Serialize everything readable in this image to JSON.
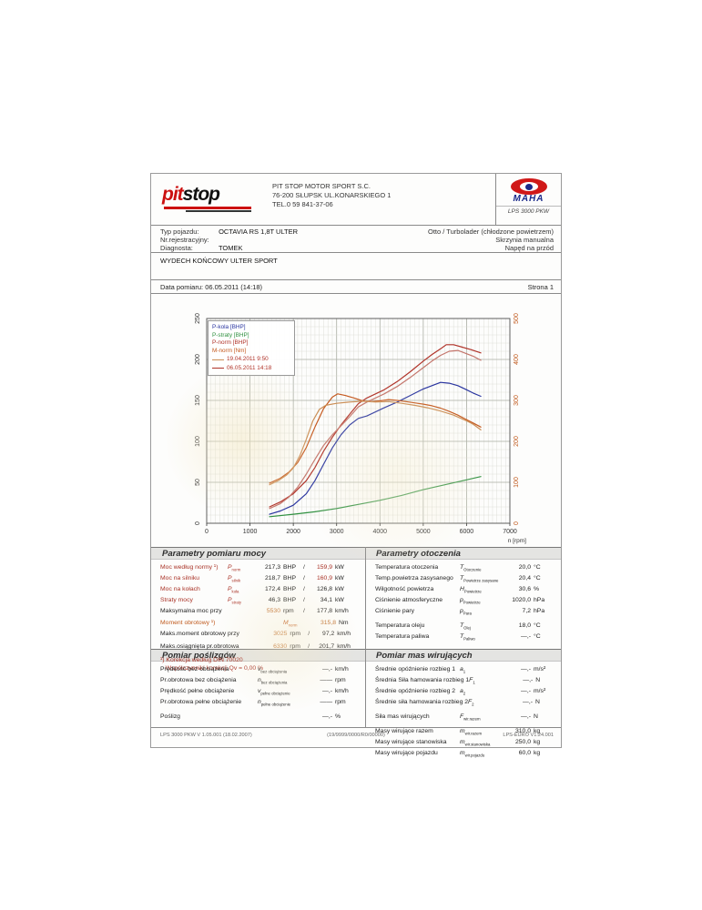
{
  "header": {
    "logo": {
      "part1": "pit",
      "part2": "stop"
    },
    "company": [
      "PIT STOP MOTOR SPORT S.C.",
      "76-200 SŁUPSK UL.KONARSKIEGO 1",
      "TEL.0 59 841-37-06"
    ],
    "maha": {
      "brand": "MAHA",
      "device": "LPS 3000 PKW"
    }
  },
  "vehicle": {
    "left": [
      {
        "label": "Typ pojazdu:",
        "value": "OCTAVIA RS 1,8T ULTER"
      },
      {
        "label": "Nr.rejestracyjny:",
        "value": ""
      },
      {
        "label": "Diagnosta:",
        "value": "TOMEK"
      }
    ],
    "right": [
      "Otto / Turbolader (chłodzone powietrzem)",
      "Skrzynia manualna",
      "Napęd na przód"
    ],
    "note": "WYDECH KOŃCOWY ULTER SPORT"
  },
  "meta": {
    "date_line": "Data pomiaru: 06.05.2011 (14:18)",
    "page": "Strona 1"
  },
  "chart_data": {
    "type": "line",
    "xlabel": "n [rpm]",
    "x_range": [
      0,
      7000
    ],
    "x_ticks": [
      0,
      1000,
      2000,
      3000,
      4000,
      5000,
      6000,
      7000
    ],
    "left_axis": {
      "label": "P [BHP]",
      "range": [
        0,
        250
      ],
      "tick_step": 50,
      "color": "#333333"
    },
    "right_axis": {
      "label": "M [Nm]",
      "range": [
        0,
        500
      ],
      "tick_step": 100,
      "color": "#c05a1e"
    },
    "grid": {
      "minor_x_step": 100,
      "minor_y_step": 10,
      "minor_color": "#d7d8d0",
      "major_color": "#a9ada3"
    },
    "legend": {
      "entries": [
        {
          "label": "P-kola [BHP]",
          "color": "#2a35a0"
        },
        {
          "label": "P-straty [BHP]",
          "color": "#2f9040"
        },
        {
          "label": "P-norm [BHP]",
          "color": "#b03228"
        },
        {
          "label": "M-norm [Nm]",
          "color": "#c55a20"
        }
      ],
      "runs": [
        {
          "label": "19.04.2011 9:50",
          "color": "#cb8e55"
        },
        {
          "label": "06.05.2011 14:18",
          "color": "#b03228"
        }
      ]
    },
    "series": [
      {
        "name": "P-kola 06.05.2011",
        "axis": "left",
        "color": "#2a35a0",
        "points": [
          [
            1450,
            11
          ],
          [
            1700,
            15
          ],
          [
            2000,
            22
          ],
          [
            2300,
            36
          ],
          [
            2500,
            52
          ],
          [
            2700,
            72
          ],
          [
            2900,
            92
          ],
          [
            3100,
            108
          ],
          [
            3300,
            120
          ],
          [
            3500,
            128
          ],
          [
            3700,
            131
          ],
          [
            3900,
            136
          ],
          [
            4100,
            141
          ],
          [
            4400,
            148
          ],
          [
            4700,
            156
          ],
          [
            5000,
            164
          ],
          [
            5200,
            168
          ],
          [
            5400,
            172
          ],
          [
            5600,
            171
          ],
          [
            5800,
            168
          ],
          [
            6000,
            163
          ],
          [
            6150,
            159
          ],
          [
            6330,
            155
          ]
        ]
      },
      {
        "name": "P-straty 06.05.2011",
        "axis": "left",
        "color": "#2f9040",
        "points": [
          [
            1450,
            8
          ],
          [
            2000,
            11
          ],
          [
            2500,
            14
          ],
          [
            3000,
            18
          ],
          [
            3500,
            23
          ],
          [
            4000,
            28
          ],
          [
            4500,
            34
          ],
          [
            5000,
            41
          ],
          [
            5500,
            47
          ],
          [
            6000,
            53
          ],
          [
            6330,
            57
          ]
        ]
      },
      {
        "name": "P-norm 06.05.2011",
        "axis": "left",
        "color": "#b03228",
        "points": [
          [
            1450,
            20
          ],
          [
            1700,
            26
          ],
          [
            2000,
            36
          ],
          [
            2300,
            52
          ],
          [
            2500,
            68
          ],
          [
            2700,
            88
          ],
          [
            2900,
            105
          ],
          [
            3100,
            120
          ],
          [
            3300,
            133
          ],
          [
            3500,
            146
          ],
          [
            3700,
            153
          ],
          [
            3900,
            158
          ],
          [
            4100,
            163
          ],
          [
            4400,
            173
          ],
          [
            4700,
            185
          ],
          [
            5000,
            198
          ],
          [
            5200,
            206
          ],
          [
            5400,
            213
          ],
          [
            5530,
            218
          ],
          [
            5700,
            218
          ],
          [
            5900,
            215
          ],
          [
            6100,
            212
          ],
          [
            6330,
            208
          ]
        ]
      },
      {
        "name": "P-norm 19.04.2011",
        "axis": "left",
        "color": "#c4756b",
        "points": [
          [
            1450,
            18
          ],
          [
            1700,
            24
          ],
          [
            1900,
            32
          ],
          [
            2100,
            44
          ],
          [
            2300,
            60
          ],
          [
            2500,
            78
          ],
          [
            2700,
            95
          ],
          [
            2900,
            108
          ],
          [
            3100,
            119
          ],
          [
            3300,
            130
          ],
          [
            3500,
            142
          ],
          [
            3700,
            148
          ],
          [
            3900,
            153
          ],
          [
            4100,
            158
          ],
          [
            4400,
            167
          ],
          [
            4700,
            178
          ],
          [
            5000,
            190
          ],
          [
            5200,
            198
          ],
          [
            5400,
            205
          ],
          [
            5600,
            210
          ],
          [
            5800,
            211
          ],
          [
            6000,
            207
          ],
          [
            6150,
            204
          ],
          [
            6330,
            199
          ]
        ]
      },
      {
        "name": "M-norm 06.05.2011",
        "axis": "right",
        "color": "#c55a20",
        "points": [
          [
            1450,
            98
          ],
          [
            1700,
            110
          ],
          [
            1900,
            125
          ],
          [
            2100,
            148
          ],
          [
            2300,
            185
          ],
          [
            2500,
            235
          ],
          [
            2700,
            280
          ],
          [
            2900,
            308
          ],
          [
            3025,
            316
          ],
          [
            3200,
            312
          ],
          [
            3400,
            306
          ],
          [
            3600,
            299
          ],
          [
            3800,
            297
          ],
          [
            4000,
            299
          ],
          [
            4200,
            302
          ],
          [
            4400,
            300
          ],
          [
            4600,
            297
          ],
          [
            4800,
            294
          ],
          [
            5000,
            291
          ],
          [
            5200,
            287
          ],
          [
            5400,
            281
          ],
          [
            5600,
            273
          ],
          [
            5800,
            264
          ],
          [
            6000,
            253
          ],
          [
            6150,
            245
          ],
          [
            6330,
            235
          ]
        ]
      },
      {
        "name": "M-norm 19.04.2011",
        "axis": "right",
        "color": "#cb8e55",
        "points": [
          [
            1450,
            94
          ],
          [
            1650,
            104
          ],
          [
            1850,
            118
          ],
          [
            2000,
            135
          ],
          [
            2150,
            165
          ],
          [
            2300,
            205
          ],
          [
            2450,
            250
          ],
          [
            2600,
            278
          ],
          [
            2750,
            288
          ],
          [
            3000,
            293
          ],
          [
            3300,
            296
          ],
          [
            3600,
            298
          ],
          [
            3900,
            296
          ],
          [
            4200,
            297
          ],
          [
            4500,
            293
          ],
          [
            4800,
            288
          ],
          [
            5100,
            282
          ],
          [
            5400,
            274
          ],
          [
            5700,
            264
          ],
          [
            6000,
            250
          ],
          [
            6150,
            242
          ],
          [
            6330,
            228
          ]
        ]
      }
    ]
  },
  "tables": {
    "power": {
      "title": "Parametry pomiaru mocy",
      "rows": [
        {
          "label": "Moc według normy ¹)",
          "sym": "P",
          "sub": "norm",
          "v1": "217,3",
          "u1": "BHP",
          "v2": "159,9",
          "u2": "kW",
          "lc": "red",
          "v2c": "red"
        },
        {
          "label": "Moc na silniku",
          "sym": "P",
          "sub": "silnik",
          "v1": "218,7",
          "u1": "BHP",
          "v2": "160,9",
          "u2": "kW",
          "lc": "red",
          "v2c": "red"
        },
        {
          "label": "Moc na kołach",
          "sym": "P",
          "sub": "koła",
          "v1": "172,4",
          "u1": "BHP",
          "v2": "126,8",
          "u2": "kW",
          "lc": "red"
        },
        {
          "label": "Straty mocy",
          "sym": "P",
          "sub": "straty",
          "v1": "46,3",
          "u1": "BHP",
          "v2": "34,1",
          "u2": "kW",
          "lc": "red"
        },
        {
          "label": "Maksymalna moc przy",
          "sym": "",
          "sub": "",
          "v1": "5530",
          "u1": "rpm",
          "v2": "177,8",
          "u2": "km/h",
          "v1c": "orange"
        },
        {
          "label": "Moment obrotowy ¹)",
          "sym": "M",
          "sub": "norm",
          "v1": "315,8",
          "u1": "Nm",
          "v2": "",
          "u2": "",
          "lc": "orange",
          "v1c": "orange",
          "gap": true
        },
        {
          "label": "Maks.moment obrotowy przy",
          "sym": "",
          "sub": "",
          "v1": "3025",
          "u1": "rpm",
          "v2": "97,2",
          "u2": "km/h",
          "v1c": "orange"
        },
        {
          "label": "Maks.osiągnięta pr.obrotowa",
          "sym": "",
          "sub": "",
          "v1": "6330",
          "u1": "rpm",
          "v2": "201,7",
          "u2": "km/h",
          "v1c": "orange",
          "gap": true
        }
      ],
      "notes": [
        "¹) Korekcja według DIN 70020",
        "Współczynniki korekcji Qv =  0,00 %"
      ]
    },
    "ambient": {
      "title": "Parametry otoczenia",
      "rows": [
        {
          "label": "Temperatura otoczenia",
          "sym": "T",
          "sub": "Otoczenie",
          "v1": "20,0",
          "u1": "°C"
        },
        {
          "label": "Temp.powietrza zasysanego",
          "sym": "T",
          "sub": "Powietrze zasysane",
          "v1": "20,4",
          "u1": "°C"
        },
        {
          "label": "Wilgotność powietrza",
          "sym": "H",
          "sub": "Powietrze",
          "v1": "30,6",
          "u1": "%"
        },
        {
          "label": "Ciśnienie atmosferyczne",
          "sym": "p",
          "sub": "Powietrze",
          "v1": "1020,0",
          "u1": "hPa"
        },
        {
          "label": "Ciśnienie pary",
          "sym": "p",
          "sub": "Para",
          "v1": "7,2",
          "u1": "hPa"
        },
        {
          "label": "Temperatura oleju",
          "sym": "T",
          "sub": "Olej",
          "v1": "18,0",
          "u1": "°C",
          "gap": true
        },
        {
          "label": "Temperatura paliwa",
          "sym": "T",
          "sub": "Paliwo",
          "v1": "—,-",
          "u1": "°C"
        }
      ]
    },
    "slip": {
      "title": "Pomiar poślizgów",
      "rows": [
        {
          "label": "Prędkość bez obciążenia",
          "sym": "v",
          "sub": "bez obciążenia",
          "v1": "—,-",
          "u1": "km/h"
        },
        {
          "label": "Pr.obrotowa bez obciążenia",
          "sym": "n",
          "sub": "bez obciążenia",
          "v1": "——",
          "u1": "rpm"
        },
        {
          "label": "Prędkość pełne obciążenie",
          "sym": "v",
          "sub": "pełne obciążenie",
          "v1": "—,-",
          "u1": "km/h"
        },
        {
          "label": "Pr.obrotowa pełne obciążenie",
          "sym": "n",
          "sub": "pełne obciążenie",
          "v1": "——",
          "u1": "rpm"
        },
        {
          "label": "Poślizg",
          "sym": "",
          "sub": "",
          "v1": "—,-",
          "u1": "%",
          "gap": true
        }
      ]
    },
    "masses": {
      "title": "Pomiar mas wirujących",
      "rows": [
        {
          "label": "Średnie opóźnienie rozbieg 1",
          "sym": "a",
          "sub": "1",
          "v1": "—,-",
          "u1": "m/s²"
        },
        {
          "label": "Średnia Siła hamowania rozbieg 1",
          "sym": "F",
          "sub": "1",
          "v1": "—,-",
          "u1": "N"
        },
        {
          "label": "Średnie opóźnienie rozbieg 2",
          "sym": "a",
          "sub": "2",
          "v1": "—,-",
          "u1": "m/s²"
        },
        {
          "label": "Średnie siła hamowania rozbieg 2",
          "sym": "F",
          "sub": "2",
          "v1": "—,-",
          "u1": "N"
        },
        {
          "label": "Siła mas wirujących",
          "sym": "F",
          "sub": "wir.razem",
          "v1": "—,-",
          "u1": "N",
          "gap": true
        },
        {
          "label": "Masy wirujące razem",
          "sym": "m",
          "sub": "wir.razem",
          "v1": "310,0",
          "u1": "kg",
          "gap": true
        },
        {
          "label": "Masy wirujące stanowiska",
          "sym": "m",
          "sub": "wir.stanowiska",
          "v1": "250,0",
          "u1": "kg"
        },
        {
          "label": "Masy wirujące pojazdu",
          "sym": "m",
          "sub": "wir.pojazdu",
          "v1": "60,0",
          "u1": "kg"
        }
      ]
    }
  },
  "footer": {
    "left": "LPS 3000 PKW V 1.05.001 (18.02.2007)",
    "center": "(19/9999/0000/R0/00000)",
    "right": "LPS-EURO V1.24.001"
  }
}
